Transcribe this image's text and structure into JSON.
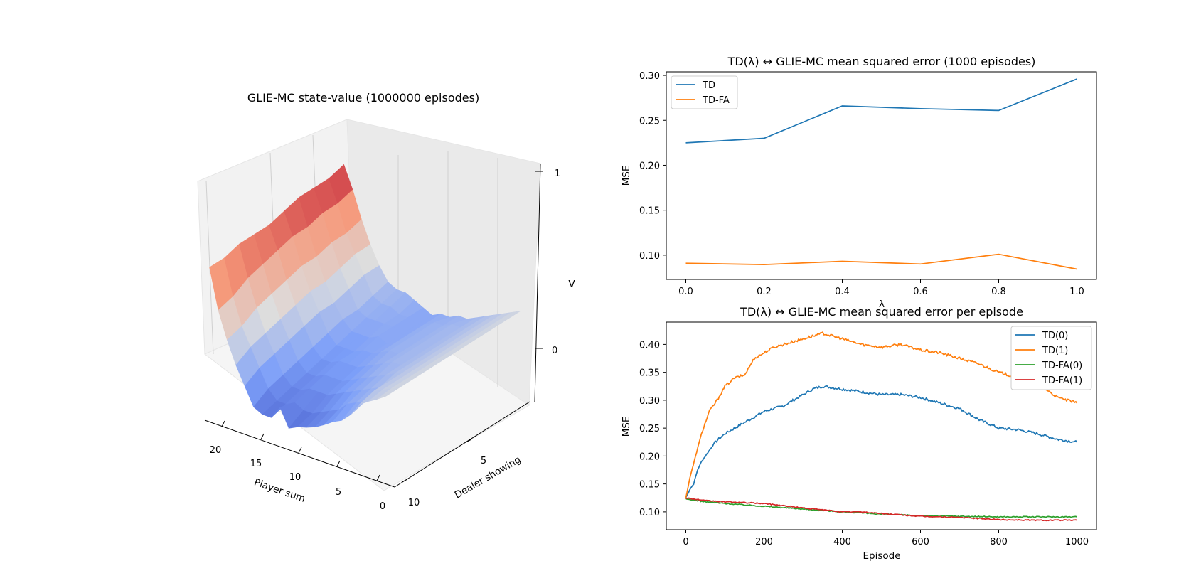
{
  "chart_data": [
    {
      "type": "surface3d",
      "title": "GLIE-MC state-value (1000000 episodes)",
      "xlabel": "Player sum",
      "ylabel": "Dealer showing",
      "zlabel": "V",
      "xticks": [
        "20",
        "15",
        "10",
        "5",
        "0"
      ],
      "yticks": [
        "5",
        "10"
      ],
      "zticks": [
        "1",
        "0"
      ],
      "xlim": [
        0,
        21
      ],
      "ylim": [
        1,
        10
      ],
      "zlim": [
        -1,
        1
      ],
      "colormap": "coolwarm",
      "player_sums": [
        1,
        2,
        3,
        4,
        5,
        6,
        7,
        8,
        9,
        10,
        11,
        12,
        13,
        14,
        15,
        16,
        17,
        18,
        19,
        20,
        21
      ],
      "dealer_showing": [
        1,
        2,
        3,
        4,
        5,
        6,
        7,
        8,
        9,
        10
      ],
      "values_by_player_sum_and_dealer": [
        [
          -0.05,
          -0.05,
          -0.05,
          -0.05,
          -0.05,
          -0.05,
          -0.05,
          -0.05,
          -0.05,
          -0.05
        ],
        [
          -0.1,
          -0.1,
          -0.1,
          -0.1,
          -0.1,
          -0.1,
          -0.1,
          -0.1,
          -0.1,
          -0.12
        ],
        [
          -0.15,
          -0.15,
          -0.15,
          -0.15,
          -0.15,
          -0.15,
          -0.15,
          -0.15,
          -0.15,
          -0.18
        ],
        [
          -0.2,
          -0.2,
          -0.2,
          -0.2,
          -0.2,
          -0.2,
          -0.2,
          -0.2,
          -0.2,
          -0.25
        ],
        [
          -0.25,
          -0.25,
          -0.25,
          -0.25,
          -0.25,
          -0.25,
          -0.25,
          -0.3,
          -0.35,
          -0.4
        ],
        [
          -0.3,
          -0.3,
          -0.3,
          -0.3,
          -0.3,
          -0.3,
          -0.3,
          -0.35,
          -0.4,
          -0.5
        ],
        [
          -0.35,
          -0.3,
          -0.3,
          -0.3,
          -0.3,
          -0.3,
          -0.35,
          -0.4,
          -0.45,
          -0.55
        ],
        [
          -0.35,
          -0.35,
          -0.35,
          -0.35,
          -0.35,
          -0.35,
          -0.4,
          -0.45,
          -0.55,
          -0.62
        ],
        [
          -0.4,
          -0.35,
          -0.35,
          -0.35,
          -0.35,
          -0.4,
          -0.45,
          -0.5,
          -0.6,
          -0.68
        ],
        [
          -0.4,
          -0.4,
          -0.4,
          -0.4,
          -0.4,
          -0.45,
          -0.5,
          -0.55,
          -0.65,
          -0.72
        ],
        [
          -0.45,
          -0.45,
          -0.45,
          -0.45,
          -0.45,
          -0.5,
          -0.55,
          -0.6,
          -0.7,
          -0.75
        ],
        [
          -0.4,
          -0.4,
          -0.4,
          -0.4,
          -0.45,
          -0.5,
          -0.55,
          -0.6,
          -0.7,
          -0.8
        ],
        [
          -0.35,
          -0.4,
          -0.4,
          -0.45,
          -0.5,
          -0.5,
          -0.55,
          -0.6,
          -0.65,
          -0.6
        ],
        [
          -0.3,
          -0.35,
          -0.4,
          -0.45,
          -0.5,
          -0.55,
          -0.6,
          -0.65,
          -0.7,
          -0.75
        ],
        [
          -0.3,
          -0.35,
          -0.4,
          -0.45,
          -0.5,
          -0.55,
          -0.6,
          -0.65,
          -0.7,
          -0.75
        ],
        [
          -0.25,
          -0.3,
          -0.35,
          -0.35,
          -0.4,
          -0.45,
          -0.5,
          -0.55,
          -0.6,
          -0.7
        ],
        [
          -0.1,
          -0.1,
          -0.15,
          -0.2,
          -0.2,
          -0.25,
          -0.3,
          -0.35,
          -0.4,
          -0.5
        ],
        [
          0.1,
          0.1,
          0.05,
          0.0,
          0.0,
          -0.05,
          -0.1,
          -0.15,
          -0.2,
          -0.3
        ],
        [
          0.35,
          0.3,
          0.3,
          0.25,
          0.25,
          0.2,
          0.15,
          0.1,
          0.0,
          -0.05
        ],
        [
          0.65,
          0.6,
          0.6,
          0.55,
          0.55,
          0.5,
          0.45,
          0.4,
          0.3,
          0.25
        ],
        [
          0.9,
          0.85,
          0.85,
          0.85,
          0.8,
          0.75,
          0.75,
          0.75,
          0.7,
          0.7
        ]
      ]
    },
    {
      "type": "line",
      "title": "TD(λ) ↔ GLIE-MC mean squared error (1000 episodes)",
      "xlabel": "λ",
      "ylabel": "MSE",
      "x": [
        0.0,
        0.2,
        0.4,
        0.6,
        0.8,
        1.0
      ],
      "xlim": [
        -0.05,
        1.05
      ],
      "ylim": [
        0.073,
        0.304
      ],
      "xticks": [
        "0.0",
        "0.2",
        "0.4",
        "0.6",
        "0.8",
        "1.0"
      ],
      "yticks": [
        "0.10",
        "0.15",
        "0.20",
        "0.25",
        "0.30"
      ],
      "legend_loc": "upper left",
      "series": [
        {
          "name": "TD",
          "color": "#1f77b4",
          "values": [
            0.225,
            0.23,
            0.266,
            0.263,
            0.261,
            0.296
          ]
        },
        {
          "name": "TD-FA",
          "color": "#ff7f0e",
          "values": [
            0.091,
            0.0895,
            0.0932,
            0.0902,
            0.101,
            0.0845
          ]
        }
      ]
    },
    {
      "type": "line",
      "title": "TD(λ) ↔ GLIE-MC mean squared error per episode",
      "xlabel": "Episode",
      "ylabel": "MSE",
      "xlim": [
        -50,
        1050
      ],
      "ylim": [
        0.068,
        0.44
      ],
      "xticks": [
        "0",
        "200",
        "400",
        "600",
        "800",
        "1000"
      ],
      "yticks": [
        "0.10",
        "0.15",
        "0.20",
        "0.25",
        "0.30",
        "0.35",
        "0.40"
      ],
      "legend_loc": "upper right",
      "series": [
        {
          "name": "TD(0)",
          "color": "#1f77b4",
          "points": [
            [
              0,
              0.125
            ],
            [
              10,
              0.14
            ],
            [
              20,
              0.15
            ],
            [
              30,
              0.175
            ],
            [
              40,
              0.19
            ],
            [
              50,
              0.2
            ],
            [
              75,
              0.225
            ],
            [
              100,
              0.24
            ],
            [
              150,
              0.26
            ],
            [
              175,
              0.27
            ],
            [
              200,
              0.28
            ],
            [
              250,
              0.29
            ],
            [
              300,
              0.31
            ],
            [
              325,
              0.32
            ],
            [
              350,
              0.325
            ],
            [
              400,
              0.32
            ],
            [
              450,
              0.315
            ],
            [
              500,
              0.31
            ],
            [
              550,
              0.31
            ],
            [
              600,
              0.305
            ],
            [
              650,
              0.295
            ],
            [
              700,
              0.285
            ],
            [
              750,
              0.265
            ],
            [
              800,
              0.25
            ],
            [
              850,
              0.247
            ],
            [
              900,
              0.24
            ],
            [
              950,
              0.23
            ],
            [
              1000,
              0.225
            ]
          ]
        },
        {
          "name": "TD(1)",
          "color": "#ff7f0e",
          "points": [
            [
              0,
              0.125
            ],
            [
              10,
              0.16
            ],
            [
              25,
              0.2
            ],
            [
              40,
              0.24
            ],
            [
              60,
              0.28
            ],
            [
              80,
              0.3
            ],
            [
              100,
              0.325
            ],
            [
              125,
              0.34
            ],
            [
              150,
              0.345
            ],
            [
              175,
              0.375
            ],
            [
              200,
              0.385
            ],
            [
              225,
              0.395
            ],
            [
              250,
              0.4
            ],
            [
              300,
              0.41
            ],
            [
              350,
              0.42
            ],
            [
              400,
              0.41
            ],
            [
              450,
              0.4
            ],
            [
              500,
              0.395
            ],
            [
              550,
              0.4
            ],
            [
              600,
              0.39
            ],
            [
              650,
              0.385
            ],
            [
              700,
              0.375
            ],
            [
              750,
              0.365
            ],
            [
              800,
              0.35
            ],
            [
              850,
              0.34
            ],
            [
              900,
              0.33
            ],
            [
              950,
              0.305
            ],
            [
              1000,
              0.295
            ]
          ]
        },
        {
          "name": "TD-FA(0)",
          "color": "#2ca02c",
          "points": [
            [
              0,
              0.123
            ],
            [
              50,
              0.118
            ],
            [
              100,
              0.115
            ],
            [
              200,
              0.11
            ],
            [
              300,
              0.105
            ],
            [
              400,
              0.1
            ],
            [
              500,
              0.096
            ],
            [
              600,
              0.093
            ],
            [
              700,
              0.092
            ],
            [
              800,
              0.091
            ],
            [
              900,
              0.091
            ],
            [
              1000,
              0.091
            ]
          ]
        },
        {
          "name": "TD-FA(1)",
          "color": "#d62728",
          "points": [
            [
              0,
              0.125
            ],
            [
              50,
              0.12
            ],
            [
              100,
              0.118
            ],
            [
              200,
              0.115
            ],
            [
              300,
              0.107
            ],
            [
              400,
              0.1
            ],
            [
              450,
              0.1
            ],
            [
              500,
              0.097
            ],
            [
              600,
              0.092
            ],
            [
              700,
              0.09
            ],
            [
              800,
              0.086
            ],
            [
              900,
              0.085
            ],
            [
              1000,
              0.085
            ]
          ]
        }
      ]
    }
  ]
}
